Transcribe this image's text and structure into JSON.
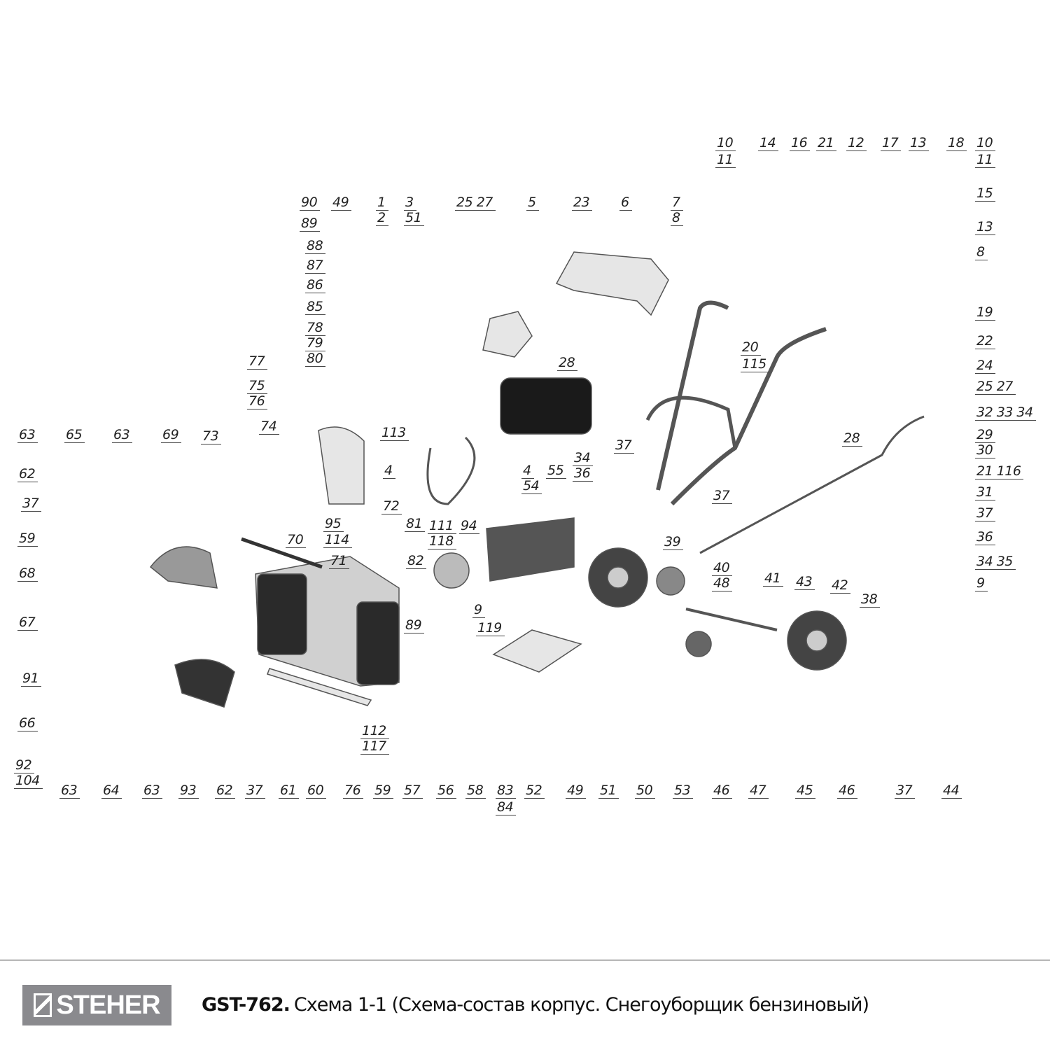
{
  "footer": {
    "logo": "STEHER",
    "model": "GST-762.",
    "description": "Схема 1-1 (Схема-состав корпус. Снегоуборщик бензиновый)"
  },
  "callouts": [
    "10",
    "11",
    "14",
    "16",
    "21",
    "12",
    "17",
    "13",
    "18",
    "10",
    "11",
    "15",
    "13",
    "8",
    "19",
    "22",
    "24",
    "25 27",
    "32 33 34",
    "29",
    "30",
    "21 116",
    "31",
    "37",
    "36",
    "34 35",
    "9",
    "20",
    "115",
    "28",
    "28",
    "37",
    "37",
    "39",
    "40",
    "48",
    "41",
    "43",
    "42",
    "38",
    "90",
    "49",
    "1",
    "2",
    "3",
    "51",
    "25 27",
    "5",
    "23",
    "6",
    "7",
    "8",
    "89",
    "88",
    "87",
    "86",
    "85",
    "78",
    "79",
    "80",
    "77",
    "75",
    "76",
    "74",
    "63",
    "65",
    "63",
    "69",
    "73",
    "113",
    "4",
    "4",
    "54",
    "55",
    "34",
    "36",
    "62",
    "37",
    "59",
    "68",
    "67",
    "91",
    "66",
    "92",
    "104",
    "70",
    "95",
    "114",
    "72",
    "81",
    "111",
    "118",
    "94",
    "71",
    "82",
    "9",
    "89",
    "119",
    "112",
    "117",
    "63",
    "64",
    "63",
    "93",
    "62",
    "37",
    "61",
    "60",
    "76",
    "59",
    "57",
    "56",
    "58",
    "83",
    "84",
    "52",
    "49",
    "51",
    "50",
    "53",
    "46",
    "47",
    "45",
    "46",
    "37",
    "44"
  ]
}
